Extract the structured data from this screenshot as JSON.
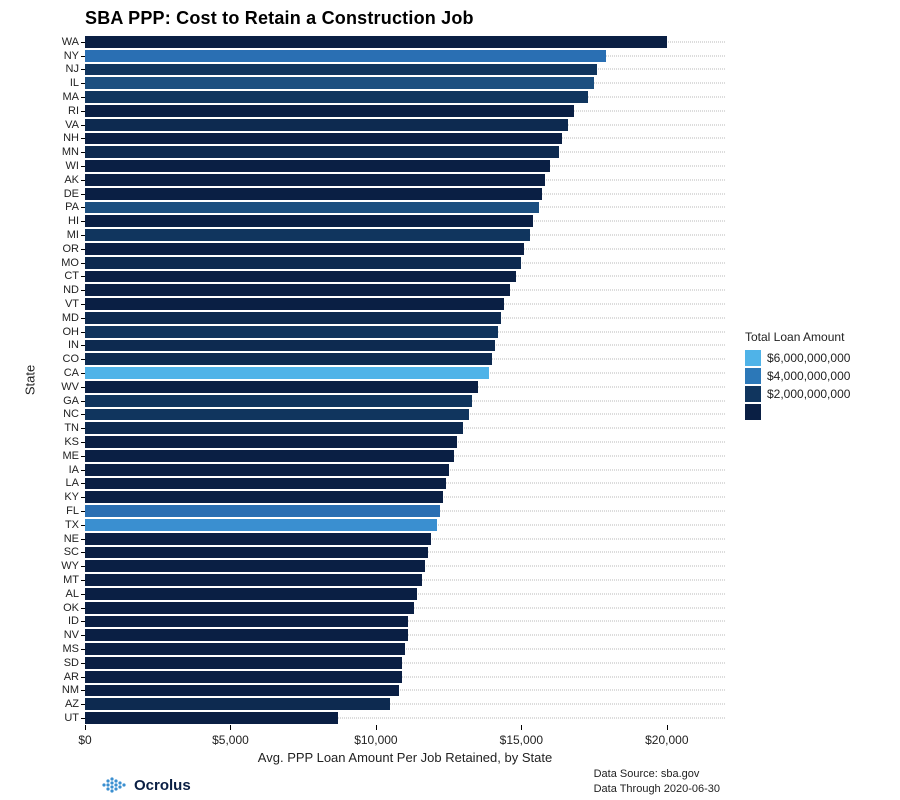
{
  "chart": {
    "type": "bar-horizontal",
    "title": "SBA PPP: Cost to Retain a Construction Job",
    "title_fontsize": 18,
    "title_fontweight": "bold",
    "background_color": "#ffffff",
    "grid_color": "#b8b8b8",
    "bar_height_ratio": 0.86,
    "xaxis": {
      "label": "Avg. PPP Loan Amount Per Job Retained, by State",
      "label_fontsize": 13,
      "lim": [
        0,
        22000
      ],
      "ticks": [
        0,
        5000,
        10000,
        15000,
        20000
      ],
      "tick_labels": [
        "$0",
        "$5,000",
        "$10,000",
        "$15,000",
        "$20,000"
      ],
      "tick_fontsize": 12
    },
    "yaxis": {
      "label": "State",
      "label_fontsize": 13,
      "tick_fontsize": 11
    },
    "states": [
      {
        "code": "WA",
        "value": 20000,
        "color": "#0a1f44"
      },
      {
        "code": "NY",
        "value": 17900,
        "color": "#2a6fb3"
      },
      {
        "code": "NJ",
        "value": 17600,
        "color": "#10355e"
      },
      {
        "code": "IL",
        "value": 17500,
        "color": "#1c4f80"
      },
      {
        "code": "MA",
        "value": 17300,
        "color": "#10355e"
      },
      {
        "code": "RI",
        "value": 16800,
        "color": "#0a1f44"
      },
      {
        "code": "VA",
        "value": 16600,
        "color": "#0d2a50"
      },
      {
        "code": "NH",
        "value": 16400,
        "color": "#0a1f44"
      },
      {
        "code": "MN",
        "value": 16300,
        "color": "#0d2a50"
      },
      {
        "code": "WI",
        "value": 16000,
        "color": "#0a1f44"
      },
      {
        "code": "AK",
        "value": 15800,
        "color": "#0a1f44"
      },
      {
        "code": "DE",
        "value": 15700,
        "color": "#0a1f44"
      },
      {
        "code": "PA",
        "value": 15600,
        "color": "#1c4f80"
      },
      {
        "code": "HI",
        "value": 15400,
        "color": "#0a1f44"
      },
      {
        "code": "MI",
        "value": 15300,
        "color": "#10355e"
      },
      {
        "code": "OR",
        "value": 15100,
        "color": "#0a1f44"
      },
      {
        "code": "MO",
        "value": 15000,
        "color": "#0d2a50"
      },
      {
        "code": "CT",
        "value": 14800,
        "color": "#0a1f44"
      },
      {
        "code": "ND",
        "value": 14600,
        "color": "#0a1f44"
      },
      {
        "code": "VT",
        "value": 14400,
        "color": "#0a1f44"
      },
      {
        "code": "MD",
        "value": 14300,
        "color": "#0d2a50"
      },
      {
        "code": "OH",
        "value": 14200,
        "color": "#10355e"
      },
      {
        "code": "IN",
        "value": 14100,
        "color": "#0d2a50"
      },
      {
        "code": "CO",
        "value": 14000,
        "color": "#0d2a50"
      },
      {
        "code": "CA",
        "value": 13900,
        "color": "#4fb3e8"
      },
      {
        "code": "WV",
        "value": 13500,
        "color": "#0a1f44"
      },
      {
        "code": "GA",
        "value": 13300,
        "color": "#10355e"
      },
      {
        "code": "NC",
        "value": 13200,
        "color": "#10355e"
      },
      {
        "code": "TN",
        "value": 13000,
        "color": "#0d2a50"
      },
      {
        "code": "KS",
        "value": 12800,
        "color": "#0a1f44"
      },
      {
        "code": "ME",
        "value": 12700,
        "color": "#0a1f44"
      },
      {
        "code": "IA",
        "value": 12500,
        "color": "#0a1f44"
      },
      {
        "code": "LA",
        "value": 12400,
        "color": "#0a1f44"
      },
      {
        "code": "KY",
        "value": 12300,
        "color": "#0a1f44"
      },
      {
        "code": "FL",
        "value": 12200,
        "color": "#2a6fb3"
      },
      {
        "code": "TX",
        "value": 12100,
        "color": "#3a8fd0"
      },
      {
        "code": "NE",
        "value": 11900,
        "color": "#0a1f44"
      },
      {
        "code": "SC",
        "value": 11800,
        "color": "#0a1f44"
      },
      {
        "code": "WY",
        "value": 11700,
        "color": "#0a1f44"
      },
      {
        "code": "MT",
        "value": 11600,
        "color": "#0a1f44"
      },
      {
        "code": "AL",
        "value": 11400,
        "color": "#0a1f44"
      },
      {
        "code": "OK",
        "value": 11300,
        "color": "#0a1f44"
      },
      {
        "code": "ID",
        "value": 11100,
        "color": "#0a1f44"
      },
      {
        "code": "NV",
        "value": 11100,
        "color": "#0a1f44"
      },
      {
        "code": "MS",
        "value": 11000,
        "color": "#0a1f44"
      },
      {
        "code": "SD",
        "value": 10900,
        "color": "#0a1f44"
      },
      {
        "code": "AR",
        "value": 10900,
        "color": "#0a1f44"
      },
      {
        "code": "NM",
        "value": 10800,
        "color": "#0a1f44"
      },
      {
        "code": "AZ",
        "value": 10500,
        "color": "#0d2a50"
      },
      {
        "code": "UT",
        "value": 8700,
        "color": "#0a1f44"
      }
    ],
    "legend": {
      "title": "Total Loan Amount",
      "title_fontsize": 12,
      "items": [
        {
          "label": "$6,000,000,000",
          "color": "#4fb3e8"
        },
        {
          "label": "$4,000,000,000",
          "color": "#2c78b8"
        },
        {
          "label": "$2,000,000,000",
          "color": "#10355e"
        }
      ],
      "extra_swatch_color": "#0a1f44"
    }
  },
  "footer": {
    "logo_text": "Ocrolus",
    "logo_dot_color": "#3a8fd0",
    "source_line": "Data Source: sba.gov",
    "through_line": "Data Through 2020-06-30"
  }
}
